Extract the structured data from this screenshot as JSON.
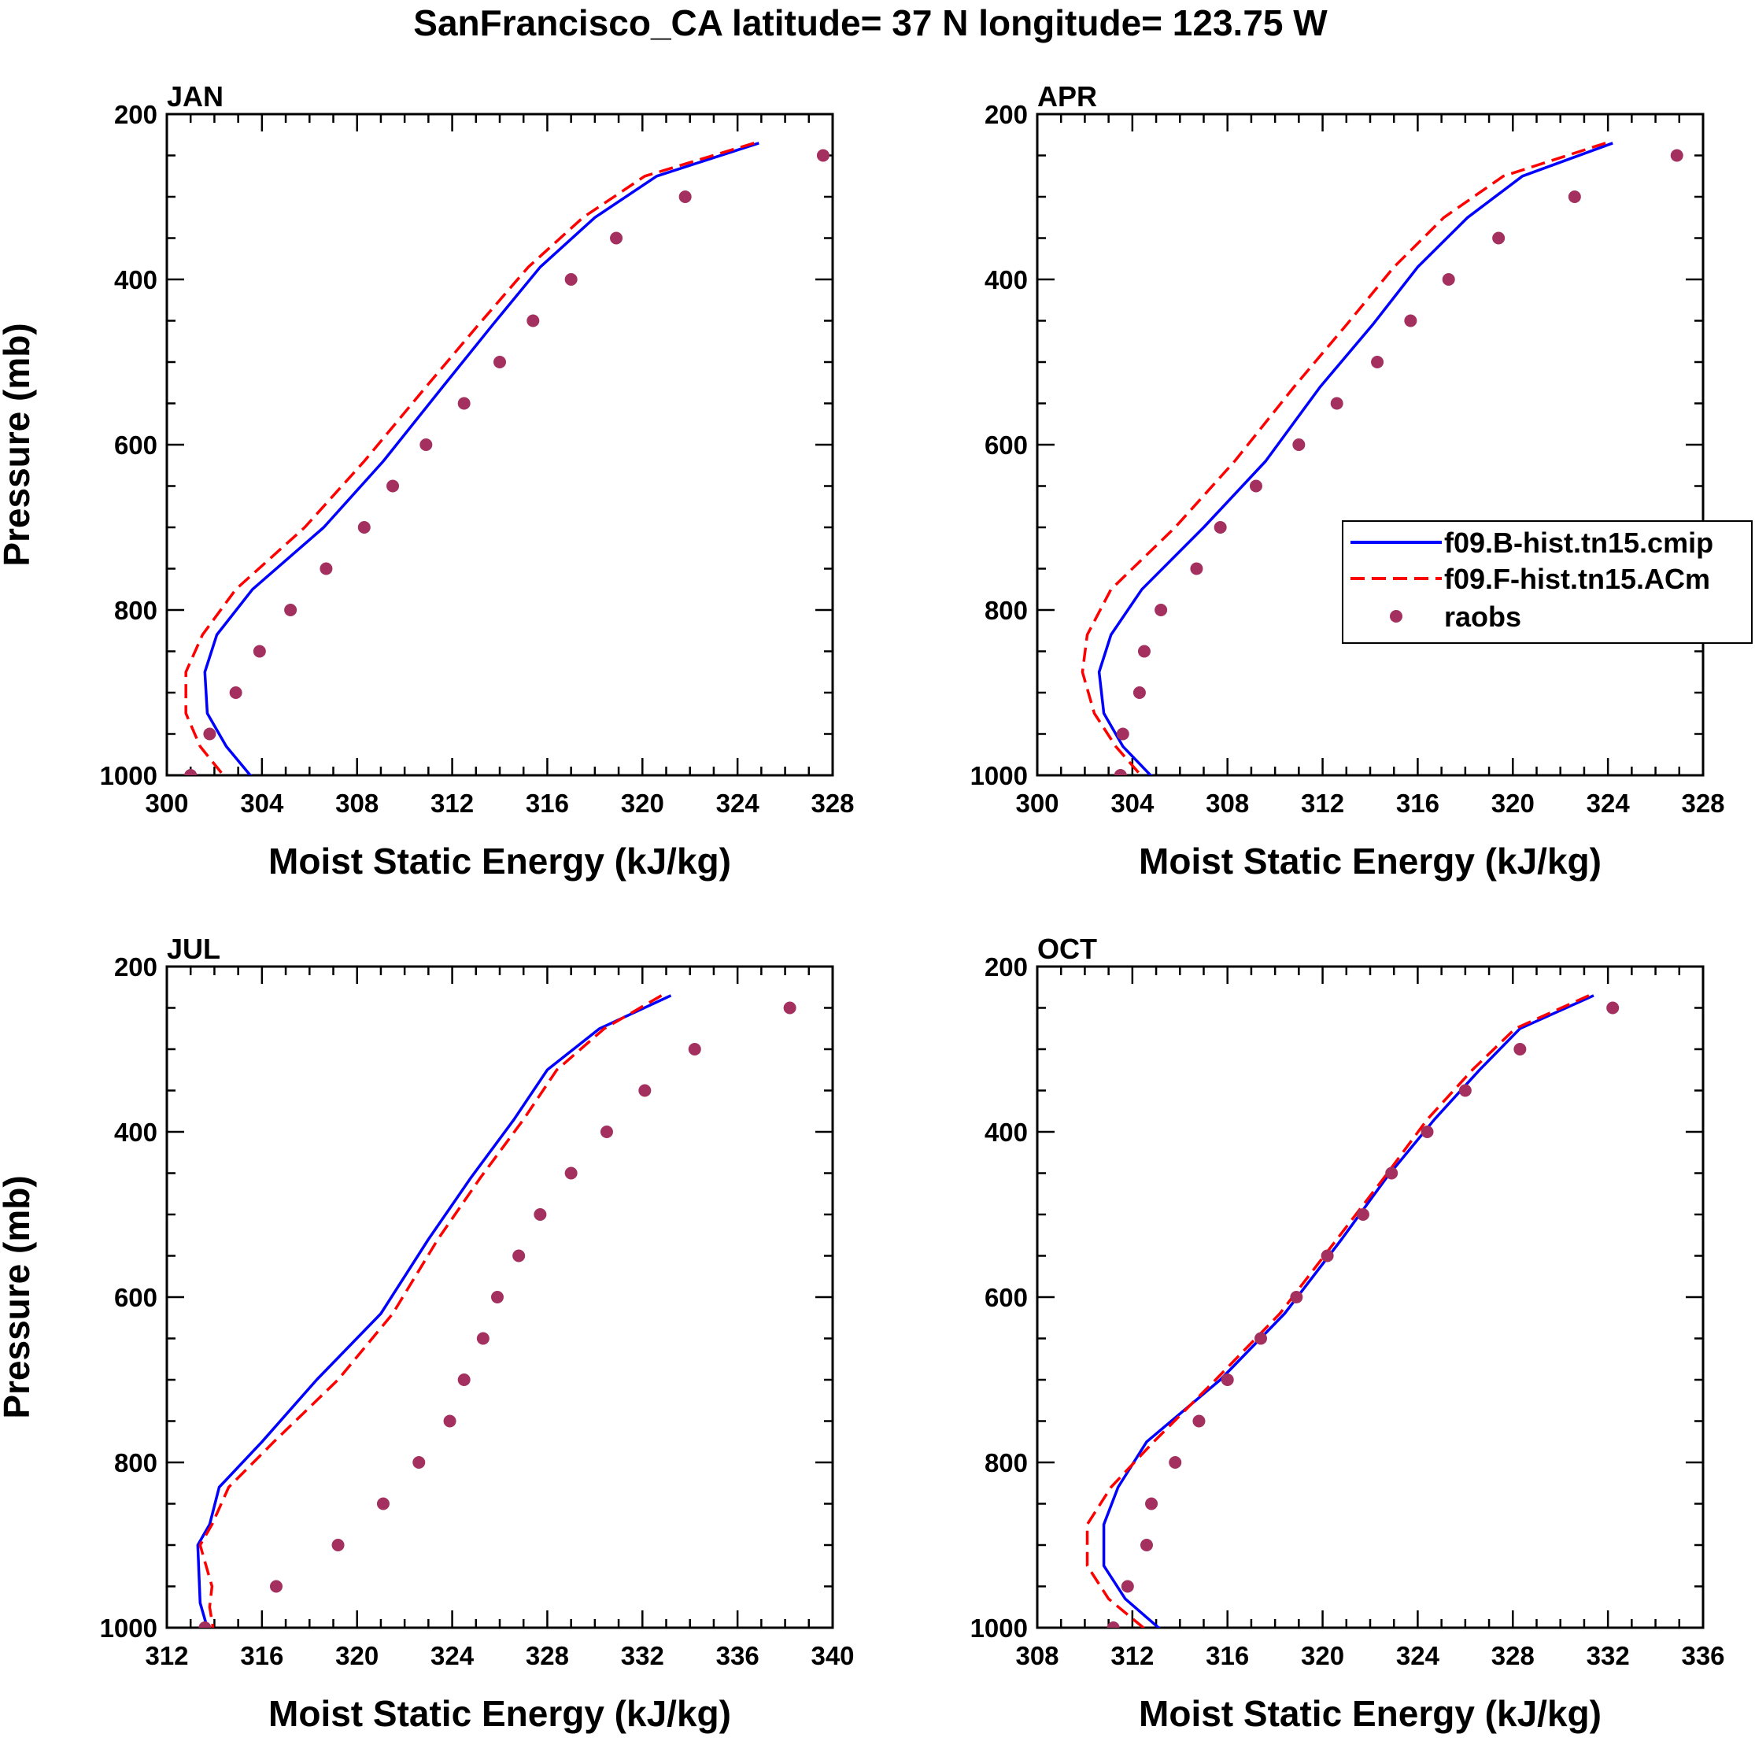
{
  "title": "SanFrancisco_CA  latitude= 37 N longitude= 123.75 W",
  "colors": {
    "model_b": "#0000ff",
    "model_f": "#ff0000",
    "raobs": "#a3305f",
    "axis": "#000000"
  },
  "legend": {
    "entries": [
      {
        "label": "f09.B-hist.tn15.cmip",
        "style": "solid",
        "color": "#0000ff"
      },
      {
        "label": "f09.F-hist.tn15.ACm",
        "style": "dashed",
        "color": "#ff0000"
      },
      {
        "label": "raobs",
        "style": "marker",
        "color": "#a3305f"
      }
    ]
  },
  "chart_data": [
    {
      "type": "line",
      "panel": "JAN",
      "xlabel": "Moist Static Energy (kJ/kg)",
      "ylabel": "Pressure (mb)",
      "xlim": [
        300,
        328
      ],
      "ylim": [
        200,
        1000
      ],
      "y_reversed": true,
      "xticks": [
        300,
        304,
        308,
        312,
        316,
        320,
        324,
        328
      ],
      "yticks": [
        200,
        400,
        600,
        800,
        1000
      ],
      "series": [
        {
          "name": "f09.B-hist.tn15.cmip",
          "style": "solid",
          "points": [
            [
              324.9,
              235
            ],
            [
              320.6,
              275
            ],
            [
              318.0,
              325
            ],
            [
              315.7,
              385
            ],
            [
              313.7,
              455
            ],
            [
              311.6,
              530
            ],
            [
              309.1,
              620
            ],
            [
              306.6,
              700
            ],
            [
              303.6,
              775
            ],
            [
              302.1,
              830
            ],
            [
              301.6,
              875
            ],
            [
              301.7,
              925
            ],
            [
              302.5,
              965
            ],
            [
              303.8,
              1010
            ]
          ]
        },
        {
          "name": "f09.F-hist.tn15.ACm",
          "style": "dashed",
          "points": [
            [
              324.7,
              235
            ],
            [
              320.1,
              275
            ],
            [
              317.5,
              325
            ],
            [
              315.2,
              385
            ],
            [
              313.1,
              455
            ],
            [
              310.9,
              530
            ],
            [
              308.3,
              620
            ],
            [
              305.8,
              700
            ],
            [
              302.9,
              775
            ],
            [
              301.5,
              830
            ],
            [
              300.8,
              875
            ],
            [
              300.8,
              925
            ],
            [
              301.4,
              965
            ],
            [
              302.6,
              1008
            ]
          ]
        },
        {
          "name": "raobs",
          "style": "marker",
          "points": [
            [
              327.6,
              250
            ],
            [
              321.8,
              300
            ],
            [
              318.9,
              350
            ],
            [
              317.0,
              400
            ],
            [
              315.4,
              450
            ],
            [
              314.0,
              500
            ],
            [
              312.5,
              550
            ],
            [
              310.9,
              600
            ],
            [
              309.5,
              650
            ],
            [
              308.3,
              700
            ],
            [
              306.7,
              750
            ],
            [
              305.2,
              800
            ],
            [
              303.9,
              850
            ],
            [
              302.9,
              900
            ],
            [
              301.8,
              950
            ],
            [
              301.0,
              1000
            ]
          ]
        }
      ]
    },
    {
      "type": "line",
      "panel": "APR",
      "xlabel": "Moist Static Energy (kJ/kg)",
      "ylabel": "",
      "xlim": [
        300,
        328
      ],
      "ylim": [
        200,
        1000
      ],
      "y_reversed": true,
      "xticks": [
        300,
        304,
        308,
        312,
        316,
        320,
        324,
        328
      ],
      "yticks": [
        200,
        400,
        600,
        800,
        1000
      ],
      "series": [
        {
          "name": "f09.B-hist.tn15.cmip",
          "style": "solid",
          "points": [
            [
              324.2,
              235
            ],
            [
              320.4,
              275
            ],
            [
              318.1,
              325
            ],
            [
              316.0,
              385
            ],
            [
              314.1,
              455
            ],
            [
              311.9,
              530
            ],
            [
              309.6,
              620
            ],
            [
              307.0,
              700
            ],
            [
              304.4,
              775
            ],
            [
              303.1,
              830
            ],
            [
              302.6,
              875
            ],
            [
              302.8,
              925
            ],
            [
              303.6,
              965
            ],
            [
              305.1,
              1010
            ]
          ]
        },
        {
          "name": "f09.F-hist.tn15.ACm",
          "style": "dashed",
          "points": [
            [
              323.9,
              235
            ],
            [
              319.6,
              275
            ],
            [
              317.1,
              325
            ],
            [
              315.0,
              385
            ],
            [
              313.0,
              455
            ],
            [
              310.8,
              530
            ],
            [
              308.3,
              620
            ],
            [
              305.8,
              700
            ],
            [
              303.1,
              775
            ],
            [
              302.1,
              830
            ],
            [
              301.9,
              875
            ],
            [
              302.4,
              925
            ],
            [
              303.3,
              965
            ],
            [
              304.6,
              1008
            ]
          ]
        },
        {
          "name": "raobs",
          "style": "marker",
          "points": [
            [
              326.9,
              250
            ],
            [
              322.6,
              300
            ],
            [
              319.4,
              350
            ],
            [
              317.3,
              400
            ],
            [
              315.7,
              450
            ],
            [
              314.3,
              500
            ],
            [
              312.6,
              550
            ],
            [
              311.0,
              600
            ],
            [
              309.2,
              650
            ],
            [
              307.7,
              700
            ],
            [
              306.7,
              750
            ],
            [
              305.2,
              800
            ],
            [
              304.5,
              850
            ],
            [
              304.3,
              900
            ],
            [
              303.6,
              950
            ],
            [
              303.5,
              1000
            ]
          ]
        }
      ]
    },
    {
      "type": "line",
      "panel": "JUL",
      "xlabel": "Moist Static Energy (kJ/kg)",
      "ylabel": "Pressure (mb)",
      "xlim": [
        312,
        340
      ],
      "ylim": [
        200,
        1000
      ],
      "y_reversed": true,
      "xticks": [
        312,
        316,
        320,
        324,
        328,
        332,
        336,
        340
      ],
      "yticks": [
        200,
        400,
        600,
        800,
        1000
      ],
      "series": [
        {
          "name": "f09.B-hist.tn15.cmip",
          "style": "solid",
          "points": [
            [
              333.2,
              235
            ],
            [
              330.2,
              275
            ],
            [
              328.0,
              325
            ],
            [
              326.6,
              385
            ],
            [
              324.8,
              455
            ],
            [
              323.0,
              530
            ],
            [
              321.0,
              620
            ],
            [
              318.3,
              700
            ],
            [
              316.0,
              775
            ],
            [
              314.2,
              830
            ],
            [
              313.8,
              875
            ],
            [
              313.3,
              900
            ],
            [
              313.4,
              970
            ],
            [
              313.8,
              1010
            ]
          ]
        },
        {
          "name": "f09.F-hist.tn15.ACm",
          "style": "dashed",
          "points": [
            [
              332.8,
              235
            ],
            [
              330.4,
              275
            ],
            [
              328.4,
              325
            ],
            [
              327.0,
              385
            ],
            [
              325.2,
              455
            ],
            [
              323.4,
              530
            ],
            [
              321.5,
              620
            ],
            [
              319.2,
              700
            ],
            [
              316.5,
              775
            ],
            [
              314.6,
              830
            ],
            [
              313.9,
              875
            ],
            [
              313.4,
              900
            ],
            [
              313.9,
              950
            ],
            [
              313.8,
              975
            ],
            [
              314.0,
              1010
            ]
          ]
        },
        {
          "name": "raobs",
          "style": "marker",
          "points": [
            [
              338.2,
              250
            ],
            [
              334.2,
              300
            ],
            [
              332.1,
              350
            ],
            [
              330.5,
              400
            ],
            [
              329.0,
              450
            ],
            [
              327.7,
              500
            ],
            [
              326.8,
              550
            ],
            [
              325.9,
              600
            ],
            [
              325.3,
              650
            ],
            [
              324.5,
              700
            ],
            [
              323.9,
              750
            ],
            [
              322.6,
              800
            ],
            [
              321.1,
              850
            ],
            [
              319.2,
              900
            ],
            [
              316.6,
              950
            ],
            [
              313.6,
              1000
            ]
          ]
        }
      ]
    },
    {
      "type": "line",
      "panel": "OCT",
      "xlabel": "Moist Static Energy (kJ/kg)",
      "ylabel": "",
      "xlim": [
        308,
        336
      ],
      "ylim": [
        200,
        1000
      ],
      "y_reversed": true,
      "xticks": [
        308,
        312,
        316,
        320,
        324,
        328,
        332,
        336
      ],
      "yticks": [
        200,
        400,
        600,
        800,
        1000
      ],
      "series": [
        {
          "name": "f09.B-hist.tn15.cmip",
          "style": "solid",
          "points": [
            [
              331.4,
              235
            ],
            [
              328.3,
              275
            ],
            [
              326.6,
              325
            ],
            [
              324.7,
              385
            ],
            [
              322.7,
              455
            ],
            [
              320.8,
              530
            ],
            [
              318.4,
              620
            ],
            [
              315.7,
              700
            ],
            [
              312.6,
              775
            ],
            [
              311.4,
              830
            ],
            [
              310.8,
              875
            ],
            [
              310.8,
              925
            ],
            [
              311.7,
              965
            ],
            [
              313.5,
              1010
            ]
          ]
        },
        {
          "name": "f09.F-hist.tn15.ACm",
          "style": "dashed",
          "points": [
            [
              331.2,
              235
            ],
            [
              328.1,
              275
            ],
            [
              326.3,
              325
            ],
            [
              324.4,
              385
            ],
            [
              322.6,
              455
            ],
            [
              320.6,
              530
            ],
            [
              318.2,
              620
            ],
            [
              315.5,
              700
            ],
            [
              312.9,
              775
            ],
            [
              311.1,
              830
            ],
            [
              310.1,
              875
            ],
            [
              310.1,
              925
            ],
            [
              311.0,
              965
            ],
            [
              312.8,
              1008
            ]
          ]
        },
        {
          "name": "raobs",
          "style": "marker",
          "points": [
            [
              332.2,
              250
            ],
            [
              328.3,
              300
            ],
            [
              326.0,
              350
            ],
            [
              324.4,
              400
            ],
            [
              322.9,
              450
            ],
            [
              321.7,
              500
            ],
            [
              320.2,
              550
            ],
            [
              318.9,
              600
            ],
            [
              317.4,
              650
            ],
            [
              316.0,
              700
            ],
            [
              314.8,
              750
            ],
            [
              313.8,
              800
            ],
            [
              312.8,
              850
            ],
            [
              312.6,
              900
            ],
            [
              311.8,
              950
            ],
            [
              311.2,
              1000
            ]
          ]
        }
      ]
    }
  ]
}
